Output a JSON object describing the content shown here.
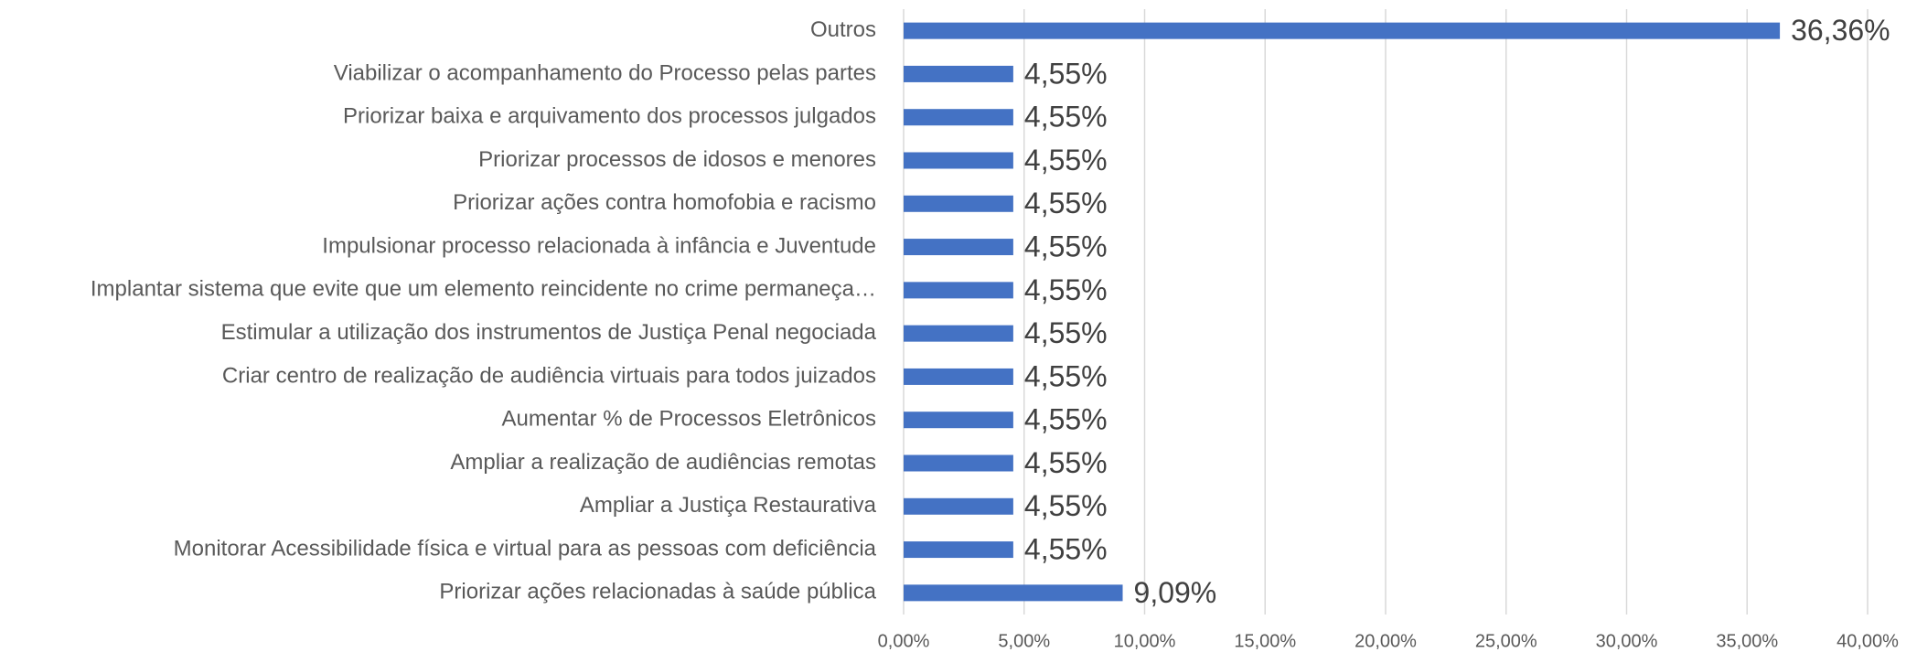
{
  "chart_data": {
    "type": "barh",
    "color": "#4472c4",
    "grid": true,
    "categories": [
      "Outros",
      "Viabilizar o acompanhamento do Processo pelas partes",
      "Priorizar baixa e arquivamento dos processos julgados",
      "Priorizar processos de idosos e menores",
      "Priorizar ações contra homofobia e racismo",
      "Impulsionar processo relacionada à infância e Juventude",
      "Implantar sistema que evite que um elemento reincidente no crime permaneça…",
      "Estimular a utilização dos instrumentos de Justiça Penal negociada",
      "Criar centro de realização de audiência virtuais para todos juizados",
      "Aumentar % de Processos Eletrônicos",
      "Ampliar a realização de audiências remotas",
      "Ampliar a Justiça Restaurativa",
      "Monitorar Acessibilidade física e virtual para as pessoas com deficiência",
      "Priorizar ações relacionadas à saúde pública"
    ],
    "values": [
      36.36,
      4.55,
      4.55,
      4.55,
      4.55,
      4.55,
      4.55,
      4.55,
      4.55,
      4.55,
      4.55,
      4.55,
      4.55,
      9.09
    ],
    "value_labels": [
      "36,36%",
      "4,55%",
      "4,55%",
      "4,55%",
      "4,55%",
      "4,55%",
      "4,55%",
      "4,55%",
      "4,55%",
      "4,55%",
      "4,55%",
      "4,55%",
      "4,55%",
      "9,09%"
    ],
    "xlim": [
      0,
      40
    ],
    "xticks": [
      {
        "value": 0,
        "label": "0,00%"
      },
      {
        "value": 5,
        "label": "5,00%"
      },
      {
        "value": 10,
        "label": "10,00%"
      },
      {
        "value": 15,
        "label": "15,00%"
      },
      {
        "value": 20,
        "label": "20,00%"
      },
      {
        "value": 25,
        "label": "25,00%"
      },
      {
        "value": 30,
        "label": "30,00%"
      },
      {
        "value": 35,
        "label": "35,00%"
      },
      {
        "value": 40,
        "label": "40,00%"
      }
    ]
  }
}
